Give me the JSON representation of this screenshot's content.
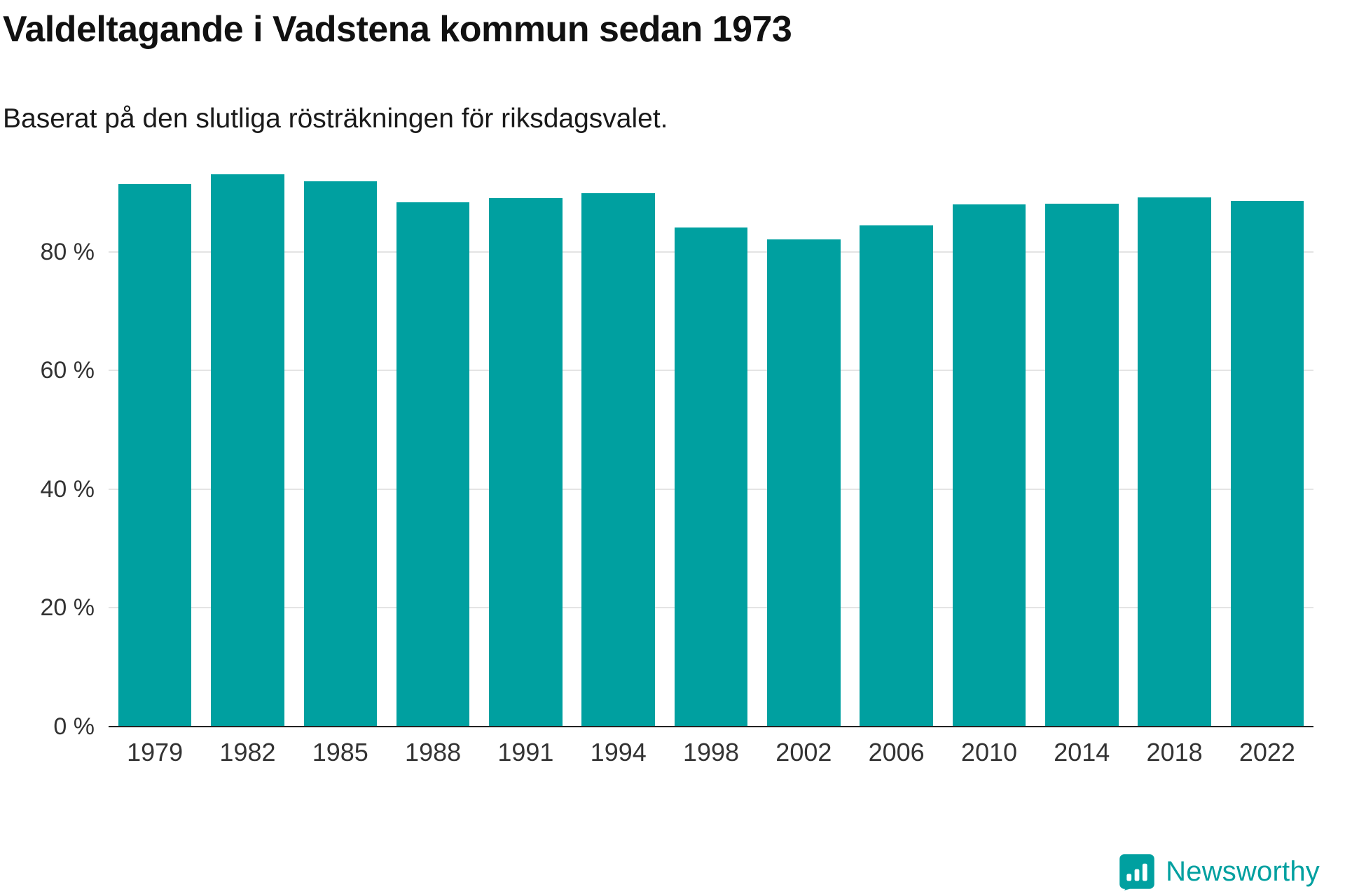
{
  "header": {
    "title": "Valdeltagande i Vadstena kommun sedan 1973",
    "subtitle": "Baserat på den slutliga rösträkningen för riksdagsvalet."
  },
  "chart_data": {
    "type": "bar",
    "title": "Valdeltagande i Vadstena kommun sedan 1973",
    "subtitle": "Baserat på den slutliga rösträkningen för riksdagsvalet.",
    "categories": [
      "1979",
      "1982",
      "1985",
      "1988",
      "1991",
      "1994",
      "1998",
      "2002",
      "2006",
      "2010",
      "2014",
      "2018",
      "2022"
    ],
    "values": [
      91.4,
      93.0,
      91.9,
      88.3,
      89.0,
      89.9,
      84.1,
      82.1,
      84.4,
      88.0,
      88.1,
      89.2,
      88.6
    ],
    "unit": "%",
    "xlabel": "",
    "ylabel": "",
    "ylim": [
      0,
      100
    ],
    "yticks": [
      0,
      20,
      40,
      60,
      80
    ],
    "ytick_labels": [
      "0 %",
      "20 %",
      "40 %",
      "60 %",
      "80 %"
    ],
    "grid": true,
    "legend": "none",
    "bar_color": "#00a0a0"
  },
  "branding": {
    "name": "Newsworthy",
    "color": "#00a0a0"
  },
  "colors": {
    "bar": "#00a0a0",
    "axis": "#222222",
    "grid": "#e4e4e4",
    "text": "#333333"
  }
}
